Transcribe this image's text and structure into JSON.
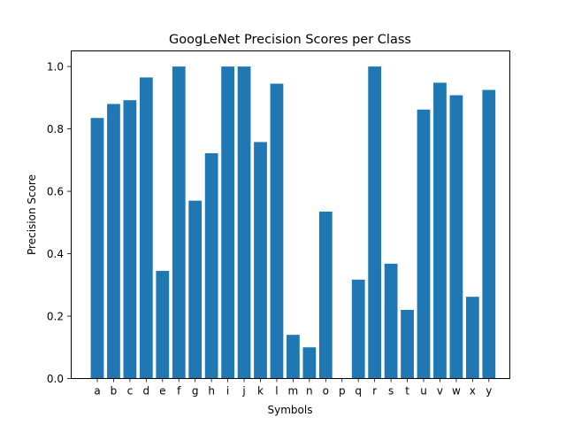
{
  "chart_data": {
    "type": "bar",
    "title": "GoogLeNet Precision Scores per Class",
    "xlabel": "Symbols",
    "ylabel": "Precision Score",
    "categories": [
      "a",
      "b",
      "c",
      "d",
      "e",
      "f",
      "g",
      "h",
      "i",
      "j",
      "k",
      "l",
      "m",
      "n",
      "o",
      "p",
      "q",
      "r",
      "s",
      "t",
      "u",
      "v",
      "w",
      "x",
      "y"
    ],
    "values": [
      0.835,
      0.88,
      0.892,
      0.965,
      0.345,
      1.0,
      0.57,
      0.722,
      1.0,
      1.0,
      0.758,
      0.945,
      0.14,
      0.1,
      0.535,
      0.0,
      0.317,
      1.0,
      0.368,
      0.22,
      0.862,
      0.948,
      0.908,
      0.262,
      0.925
    ],
    "ylim": [
      0,
      1.05
    ],
    "yticks": [
      0.0,
      0.2,
      0.4,
      0.6,
      0.8,
      1.0
    ],
    "ytick_labels": [
      "0.0",
      "0.2",
      "0.4",
      "0.6",
      "0.8",
      "1.0"
    ],
    "bar_color": "#1f77b4",
    "grid": false,
    "legend": "none"
  }
}
